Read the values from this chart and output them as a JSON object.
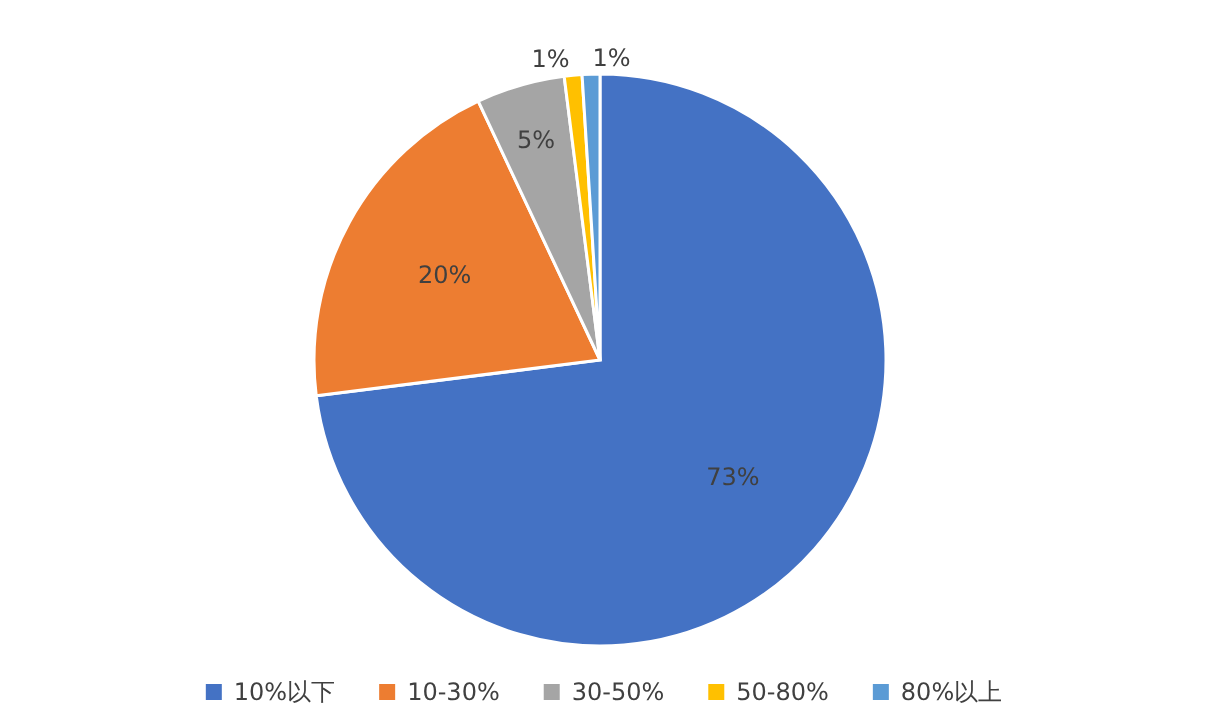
{
  "chart_data": {
    "type": "pie",
    "categories": [
      "10%以下",
      "10-30%",
      "30-50%",
      "50-80%",
      "80%以上"
    ],
    "values": [
      73,
      20,
      5,
      1,
      1
    ],
    "value_labels": [
      "73%",
      "20%",
      "5%",
      "1%",
      "1%"
    ],
    "colors": [
      "#4472c4",
      "#ed7d31",
      "#a5a5a5",
      "#ffc000",
      "#5b9bd5"
    ],
    "legend": "bottom"
  }
}
